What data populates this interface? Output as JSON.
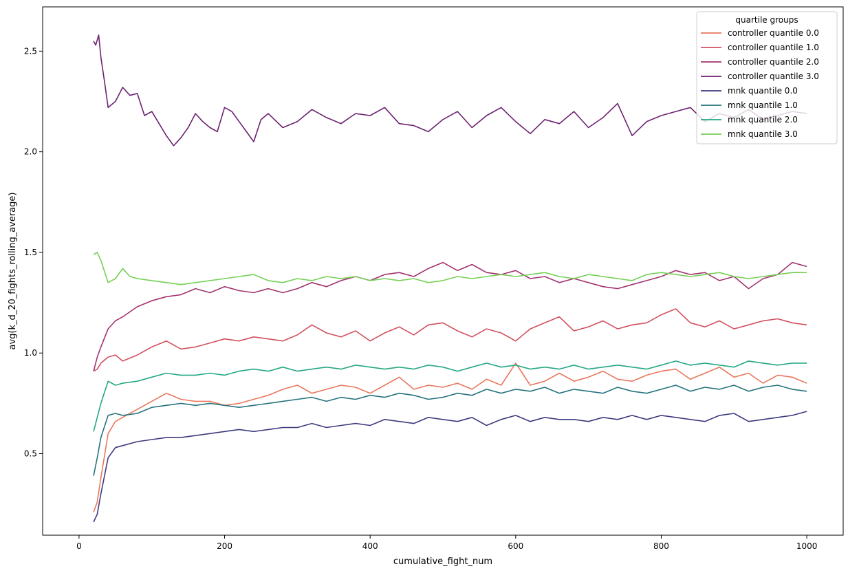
{
  "chart_data": {
    "type": "line",
    "xlabel": "cumulative_fight_num",
    "ylabel": "avg(k_d_20_fights_rolling_average)",
    "xlim": [
      -50,
      1050
    ],
    "ylim": [
      0.095,
      2.72
    ],
    "xticks": [
      0,
      200,
      400,
      600,
      800,
      1000
    ],
    "xtick_labels": [
      "0",
      "200",
      "400",
      "600",
      "800",
      "1000"
    ],
    "yticks": [
      0.5,
      1.0,
      1.5,
      2.0,
      2.5
    ],
    "ytick_labels": [
      "0.5",
      "1.0",
      "1.5",
      "2.0",
      "2.5"
    ],
    "grid": false,
    "legend": {
      "title": "quartile groups",
      "placement": "top-right"
    },
    "series": [
      {
        "name": "controller quantile 0.0",
        "color": "#e8775c",
        "x": [
          20,
          25,
          30,
          40,
          50,
          60,
          80,
          100,
          120,
          140,
          160,
          180,
          200,
          220,
          240,
          260,
          280,
          300,
          320,
          340,
          360,
          380,
          400,
          420,
          440,
          460,
          480,
          500,
          520,
          540,
          560,
          580,
          600,
          620,
          640,
          660,
          680,
          700,
          720,
          740,
          760,
          780,
          800,
          820,
          840,
          860,
          880,
          900,
          920,
          940,
          960,
          980,
          1000
        ],
        "y": [
          0.21,
          0.26,
          0.38,
          0.6,
          0.66,
          0.68,
          0.72,
          0.76,
          0.8,
          0.77,
          0.76,
          0.76,
          0.74,
          0.75,
          0.77,
          0.79,
          0.82,
          0.84,
          0.8,
          0.82,
          0.84,
          0.83,
          0.8,
          0.84,
          0.88,
          0.82,
          0.84,
          0.83,
          0.85,
          0.82,
          0.87,
          0.84,
          0.95,
          0.84,
          0.86,
          0.9,
          0.86,
          0.88,
          0.91,
          0.87,
          0.86,
          0.89,
          0.91,
          0.92,
          0.87,
          0.9,
          0.93,
          0.88,
          0.9,
          0.85,
          0.89,
          0.88,
          0.85
        ]
      },
      {
        "name": "controller quantile 1.0",
        "color": "#d1505f",
        "x": [
          20,
          25,
          30,
          40,
          50,
          60,
          80,
          100,
          120,
          140,
          160,
          180,
          200,
          220,
          240,
          260,
          280,
          300,
          320,
          340,
          360,
          380,
          400,
          420,
          440,
          460,
          480,
          500,
          520,
          540,
          560,
          580,
          600,
          620,
          640,
          660,
          680,
          700,
          720,
          740,
          760,
          780,
          800,
          820,
          840,
          860,
          880,
          900,
          920,
          940,
          960,
          980,
          1000
        ],
        "y": [
          0.91,
          0.92,
          0.95,
          0.98,
          0.99,
          0.96,
          0.99,
          1.03,
          1.06,
          1.02,
          1.03,
          1.05,
          1.07,
          1.06,
          1.08,
          1.07,
          1.06,
          1.09,
          1.14,
          1.1,
          1.08,
          1.11,
          1.06,
          1.1,
          1.13,
          1.09,
          1.14,
          1.15,
          1.11,
          1.08,
          1.12,
          1.1,
          1.06,
          1.12,
          1.15,
          1.18,
          1.11,
          1.13,
          1.16,
          1.12,
          1.14,
          1.15,
          1.19,
          1.22,
          1.15,
          1.13,
          1.16,
          1.12,
          1.14,
          1.16,
          1.17,
          1.15,
          1.14
        ]
      },
      {
        "name": "controller quantile 2.0",
        "color": "#a2326e",
        "x": [
          20,
          25,
          30,
          40,
          50,
          60,
          80,
          100,
          120,
          140,
          160,
          180,
          200,
          220,
          240,
          260,
          280,
          300,
          320,
          340,
          360,
          380,
          400,
          420,
          440,
          460,
          480,
          500,
          520,
          540,
          560,
          580,
          600,
          620,
          640,
          660,
          680,
          700,
          720,
          740,
          760,
          780,
          800,
          820,
          840,
          860,
          880,
          900,
          920,
          940,
          960,
          980,
          1000
        ],
        "y": [
          0.91,
          0.98,
          1.03,
          1.12,
          1.16,
          1.18,
          1.23,
          1.26,
          1.28,
          1.29,
          1.32,
          1.3,
          1.33,
          1.31,
          1.3,
          1.32,
          1.3,
          1.32,
          1.35,
          1.33,
          1.36,
          1.38,
          1.36,
          1.39,
          1.4,
          1.38,
          1.42,
          1.45,
          1.41,
          1.44,
          1.4,
          1.39,
          1.41,
          1.37,
          1.38,
          1.35,
          1.37,
          1.35,
          1.33,
          1.32,
          1.34,
          1.36,
          1.38,
          1.41,
          1.39,
          1.4,
          1.36,
          1.38,
          1.32,
          1.37,
          1.39,
          1.45,
          1.43
        ]
      },
      {
        "name": "controller quantile 3.0",
        "color": "#6b2170",
        "x": [
          20,
          23,
          27,
          30,
          35,
          40,
          50,
          60,
          70,
          80,
          90,
          100,
          110,
          120,
          130,
          140,
          150,
          160,
          170,
          180,
          190,
          200,
          210,
          220,
          230,
          240,
          250,
          260,
          280,
          300,
          320,
          340,
          360,
          380,
          400,
          420,
          440,
          460,
          480,
          500,
          520,
          540,
          560,
          580,
          600,
          620,
          640,
          660,
          680,
          700,
          720,
          740,
          760,
          780,
          800,
          820,
          840,
          860,
          880,
          900,
          920,
          940,
          960,
          980,
          1000
        ],
        "y": [
          2.55,
          2.53,
          2.58,
          2.47,
          2.35,
          2.22,
          2.25,
          2.32,
          2.28,
          2.29,
          2.18,
          2.2,
          2.14,
          2.08,
          2.03,
          2.07,
          2.12,
          2.19,
          2.15,
          2.12,
          2.1,
          2.22,
          2.2,
          2.15,
          2.1,
          2.05,
          2.16,
          2.19,
          2.12,
          2.15,
          2.21,
          2.17,
          2.14,
          2.19,
          2.18,
          2.22,
          2.14,
          2.13,
          2.1,
          2.16,
          2.2,
          2.12,
          2.18,
          2.22,
          2.15,
          2.09,
          2.16,
          2.14,
          2.2,
          2.12,
          2.17,
          2.24,
          2.08,
          2.15,
          2.18,
          2.2,
          2.22,
          2.15,
          2.19,
          2.17,
          2.21,
          2.16,
          2.18,
          2.2,
          2.19
        ]
      },
      {
        "name": "mnk quantile 0.0",
        "color": "#3d3a7e",
        "x": [
          20,
          25,
          30,
          40,
          50,
          60,
          80,
          100,
          120,
          140,
          160,
          180,
          200,
          220,
          240,
          260,
          280,
          300,
          320,
          340,
          360,
          380,
          400,
          420,
          440,
          460,
          480,
          500,
          520,
          540,
          560,
          580,
          600,
          620,
          640,
          660,
          680,
          700,
          720,
          740,
          760,
          780,
          800,
          820,
          840,
          860,
          880,
          900,
          920,
          940,
          960,
          980,
          1000
        ],
        "y": [
          0.16,
          0.2,
          0.3,
          0.48,
          0.53,
          0.54,
          0.56,
          0.57,
          0.58,
          0.58,
          0.59,
          0.6,
          0.61,
          0.62,
          0.61,
          0.62,
          0.63,
          0.63,
          0.65,
          0.63,
          0.64,
          0.65,
          0.64,
          0.67,
          0.66,
          0.65,
          0.68,
          0.67,
          0.66,
          0.68,
          0.64,
          0.67,
          0.69,
          0.66,
          0.68,
          0.67,
          0.67,
          0.66,
          0.68,
          0.67,
          0.69,
          0.67,
          0.69,
          0.68,
          0.67,
          0.66,
          0.69,
          0.7,
          0.66,
          0.67,
          0.68,
          0.69,
          0.71
        ]
      },
      {
        "name": "mnk quantile 1.0",
        "color": "#25737e",
        "x": [
          20,
          25,
          30,
          40,
          50,
          60,
          80,
          100,
          120,
          140,
          160,
          180,
          200,
          220,
          240,
          260,
          280,
          300,
          320,
          340,
          360,
          380,
          400,
          420,
          440,
          460,
          480,
          500,
          520,
          540,
          560,
          580,
          600,
          620,
          640,
          660,
          680,
          700,
          720,
          740,
          760,
          780,
          800,
          820,
          840,
          860,
          880,
          900,
          920,
          940,
          960,
          980,
          1000
        ],
        "y": [
          0.39,
          0.48,
          0.58,
          0.69,
          0.7,
          0.69,
          0.7,
          0.73,
          0.74,
          0.75,
          0.74,
          0.75,
          0.74,
          0.73,
          0.74,
          0.75,
          0.76,
          0.77,
          0.78,
          0.76,
          0.78,
          0.77,
          0.79,
          0.78,
          0.8,
          0.79,
          0.77,
          0.78,
          0.8,
          0.79,
          0.82,
          0.8,
          0.82,
          0.81,
          0.83,
          0.8,
          0.82,
          0.81,
          0.8,
          0.83,
          0.81,
          0.8,
          0.82,
          0.84,
          0.81,
          0.83,
          0.82,
          0.84,
          0.81,
          0.83,
          0.84,
          0.82,
          0.81
        ]
      },
      {
        "name": "mnk quantile 2.0",
        "color": "#22a784",
        "x": [
          20,
          25,
          30,
          40,
          50,
          60,
          80,
          100,
          120,
          140,
          160,
          180,
          200,
          220,
          240,
          260,
          280,
          300,
          320,
          340,
          360,
          380,
          400,
          420,
          440,
          460,
          480,
          500,
          520,
          540,
          560,
          580,
          600,
          620,
          640,
          660,
          680,
          700,
          720,
          740,
          760,
          780,
          800,
          820,
          840,
          860,
          880,
          900,
          920,
          940,
          960,
          980,
          1000
        ],
        "y": [
          0.61,
          0.68,
          0.75,
          0.86,
          0.84,
          0.85,
          0.86,
          0.88,
          0.9,
          0.89,
          0.89,
          0.9,
          0.89,
          0.91,
          0.92,
          0.91,
          0.93,
          0.91,
          0.92,
          0.93,
          0.92,
          0.94,
          0.93,
          0.92,
          0.93,
          0.92,
          0.94,
          0.93,
          0.91,
          0.93,
          0.95,
          0.93,
          0.94,
          0.92,
          0.93,
          0.92,
          0.94,
          0.92,
          0.93,
          0.94,
          0.93,
          0.92,
          0.94,
          0.96,
          0.94,
          0.95,
          0.94,
          0.93,
          0.96,
          0.95,
          0.94,
          0.95,
          0.95
        ]
      },
      {
        "name": "mnk quantile 3.0",
        "color": "#74d055",
        "x": [
          20,
          25,
          30,
          40,
          50,
          60,
          70,
          80,
          100,
          120,
          140,
          160,
          180,
          200,
          220,
          240,
          260,
          280,
          300,
          320,
          340,
          360,
          380,
          400,
          420,
          440,
          460,
          480,
          500,
          520,
          540,
          560,
          580,
          600,
          620,
          640,
          660,
          680,
          700,
          720,
          740,
          760,
          780,
          800,
          820,
          840,
          860,
          880,
          900,
          920,
          940,
          960,
          980,
          1000
        ],
        "y": [
          1.49,
          1.5,
          1.46,
          1.35,
          1.37,
          1.42,
          1.38,
          1.37,
          1.36,
          1.35,
          1.34,
          1.35,
          1.36,
          1.37,
          1.38,
          1.39,
          1.36,
          1.35,
          1.37,
          1.36,
          1.38,
          1.37,
          1.38,
          1.36,
          1.37,
          1.36,
          1.37,
          1.35,
          1.36,
          1.38,
          1.37,
          1.38,
          1.39,
          1.38,
          1.39,
          1.4,
          1.38,
          1.37,
          1.39,
          1.38,
          1.37,
          1.36,
          1.39,
          1.4,
          1.39,
          1.38,
          1.39,
          1.4,
          1.38,
          1.37,
          1.38,
          1.39,
          1.4,
          1.4
        ]
      }
    ]
  }
}
